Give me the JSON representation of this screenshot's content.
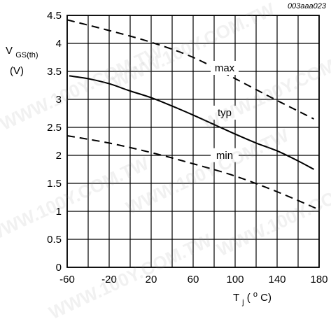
{
  "figure_code": "003aaa023",
  "watermark": "WWW.100Y.COM.TW",
  "chart_data": {
    "type": "line",
    "title": "",
    "ylabel": {
      "main": "V",
      "sub": "GS(th)",
      "unit": "(V)"
    },
    "xlabel": {
      "main": "T",
      "sub": "j",
      "open": " (",
      "sup": "o",
      "unit": "C)"
    },
    "xlim": [
      -60,
      180
    ],
    "ylim": [
      0,
      4.5
    ],
    "xticks": [
      -60,
      -20,
      20,
      60,
      100,
      140,
      180
    ],
    "xtick_labels": [
      "-60",
      "-20",
      "20",
      "60",
      "100",
      "140",
      "180"
    ],
    "yticks": [
      0,
      0.5,
      1,
      1.5,
      2,
      2.5,
      3,
      3.5,
      4,
      4.5
    ],
    "ytick_labels": [
      "0",
      "0.5",
      "1",
      "1.5",
      "2",
      "2.5",
      "3",
      "3.5",
      "4",
      "4.5"
    ],
    "grid": true,
    "series": [
      {
        "name": "max",
        "style": "dashed",
        "x": [
          -60,
          -20,
          20,
          60,
          100,
          140,
          175
        ],
        "y": [
          4.42,
          4.23,
          4.02,
          3.75,
          3.37,
          2.98,
          2.65
        ]
      },
      {
        "name": "typ",
        "style": "solid",
        "x": [
          -58,
          -40,
          -20,
          0,
          20,
          40,
          60,
          80,
          100,
          120,
          140,
          160,
          175
        ],
        "y": [
          3.42,
          3.37,
          3.28,
          3.15,
          3.03,
          2.88,
          2.72,
          2.55,
          2.38,
          2.22,
          2.08,
          1.9,
          1.75
        ]
      },
      {
        "name": "min",
        "style": "dashed",
        "x": [
          -60,
          -20,
          20,
          60,
          100,
          140,
          180
        ],
        "y": [
          2.35,
          2.22,
          2.05,
          1.85,
          1.63,
          1.35,
          1.03
        ]
      }
    ]
  }
}
